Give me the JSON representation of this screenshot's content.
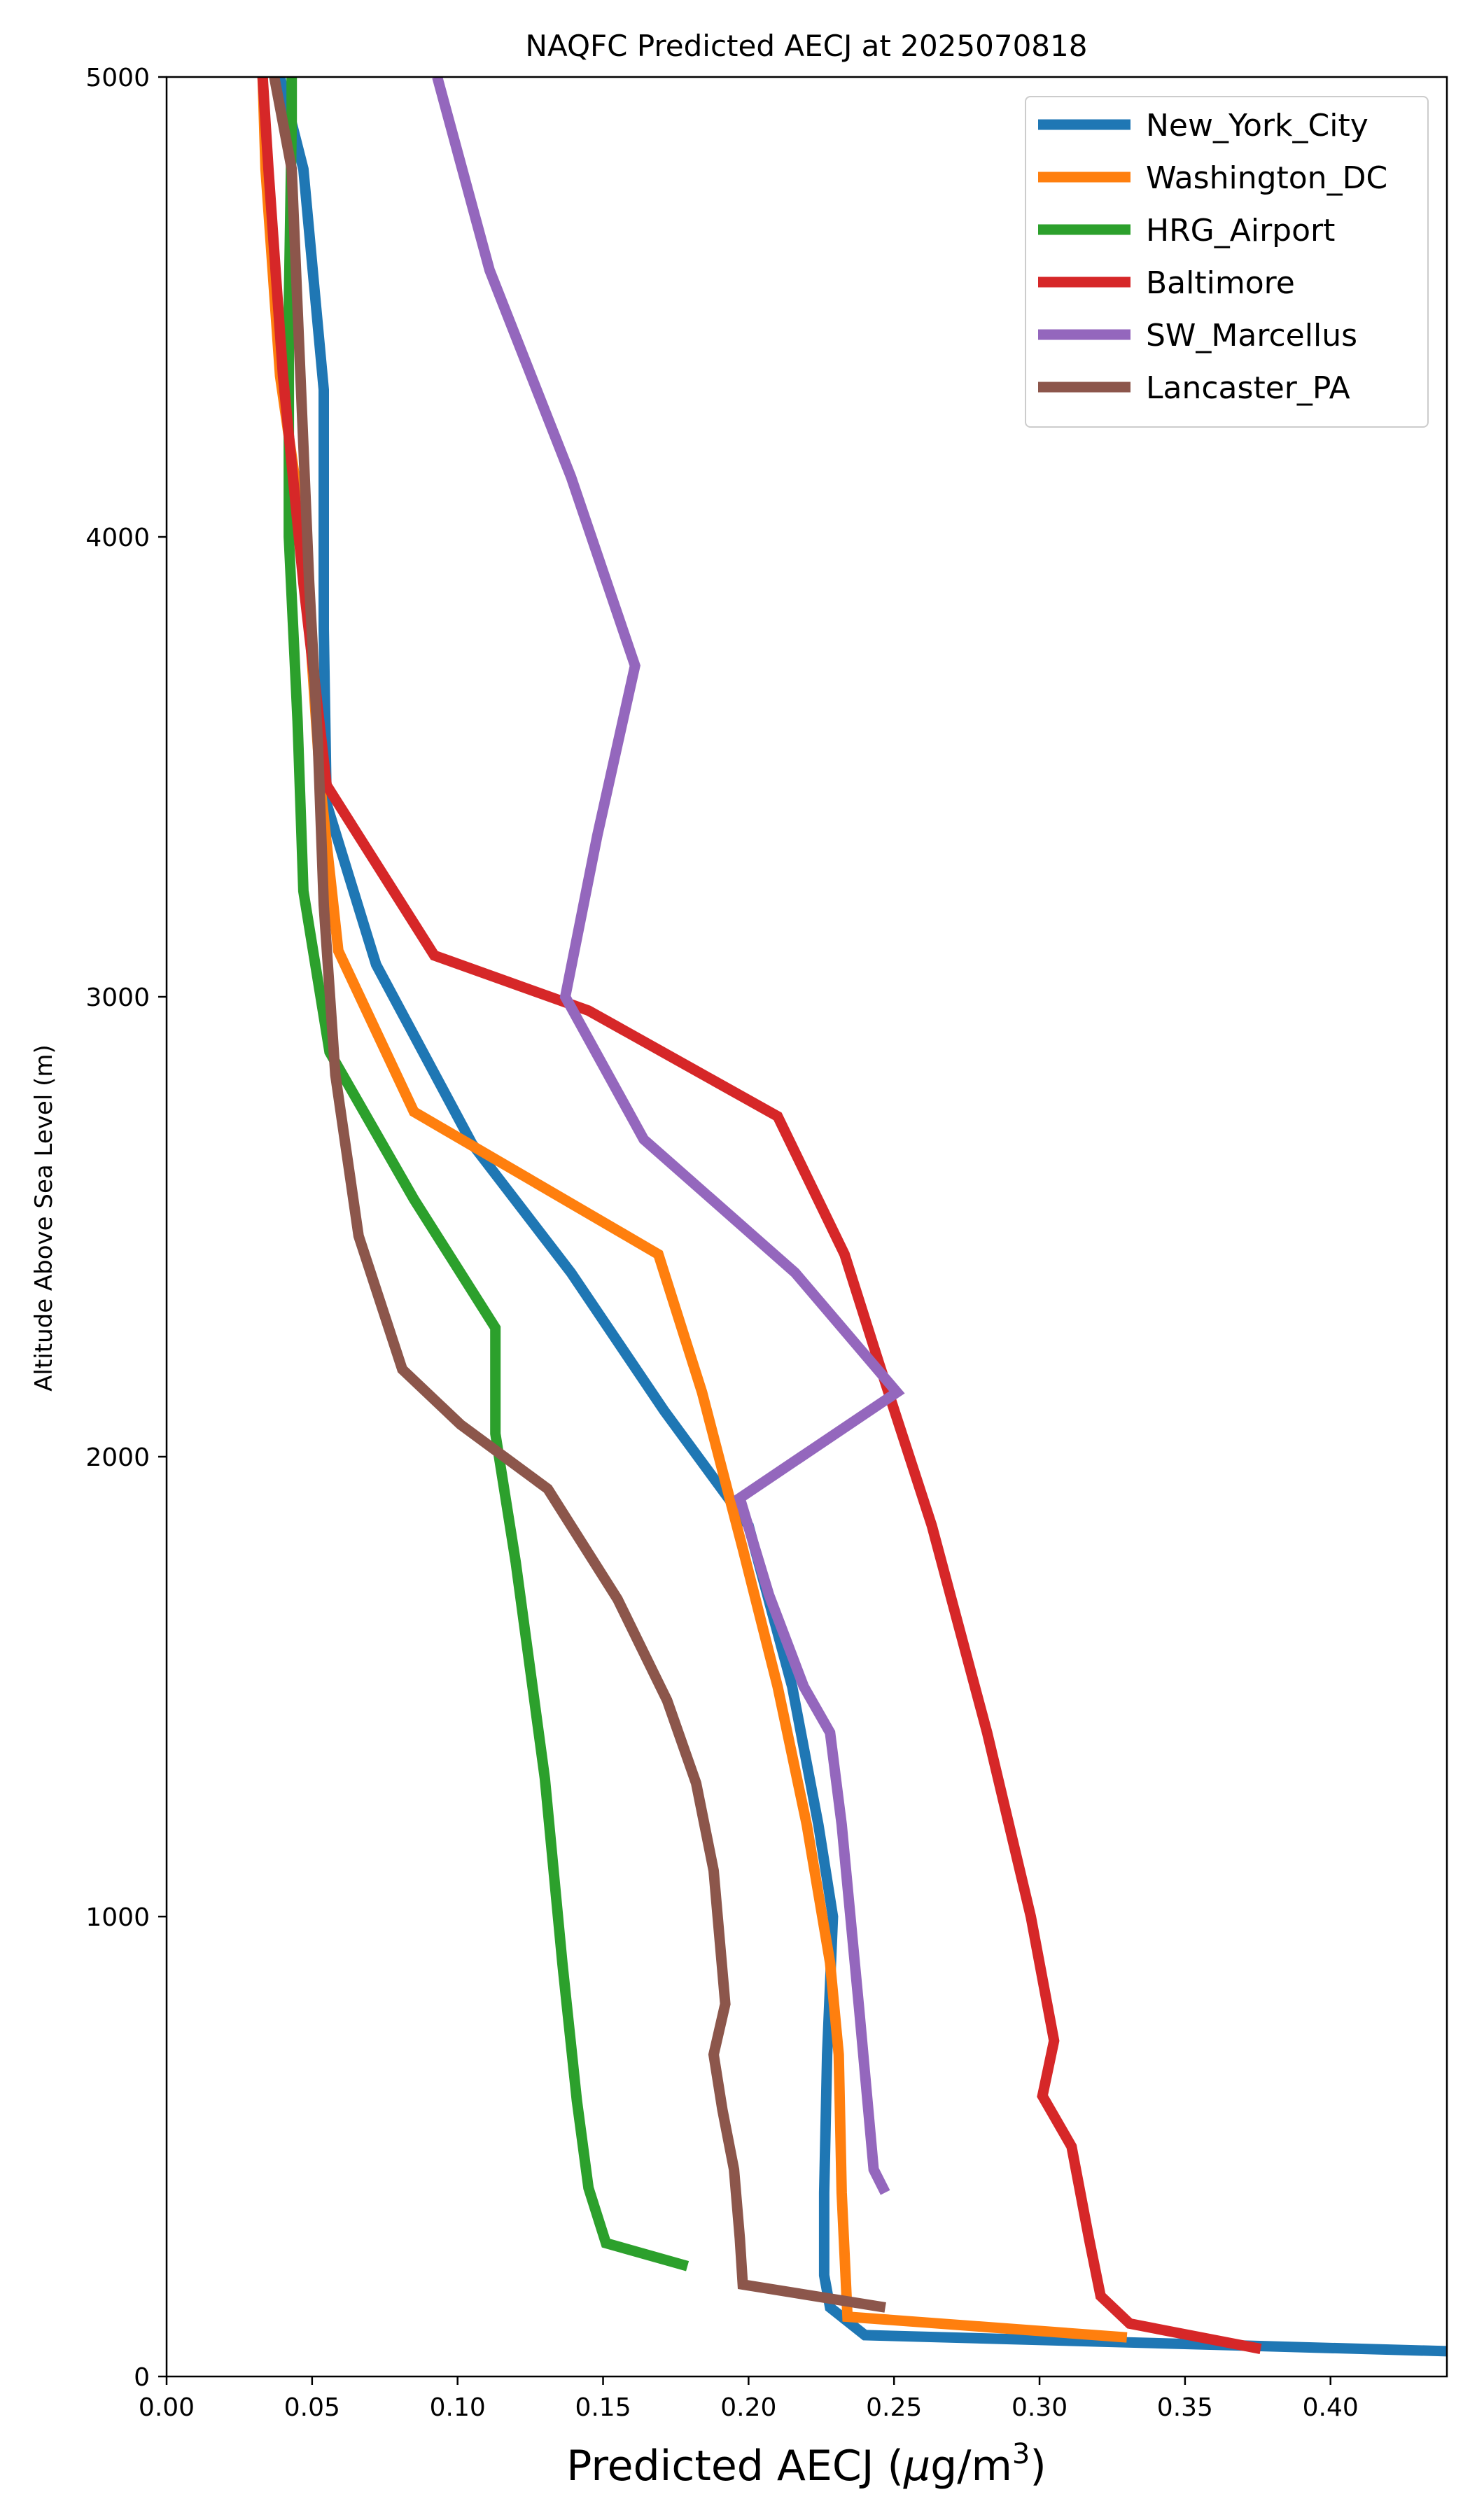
{
  "chart_data": {
    "type": "line",
    "title": "NAQFC Predicted AECJ at 2025070818",
    "xlabel": "Predicted AECJ (μg/m³)",
    "ylabel": "Altitude Above Sea Level (m)",
    "xlim": [
      0.0,
      0.44
    ],
    "ylim": [
      0,
      5000
    ],
    "xticks": [
      0.0,
      0.05,
      0.1,
      0.15,
      0.2,
      0.25,
      0.3,
      0.35,
      0.4
    ],
    "xtick_labels": [
      "0.00",
      "0.05",
      "0.10",
      "0.15",
      "0.20",
      "0.25",
      "0.30",
      "0.35",
      "0.40"
    ],
    "yticks": [
      0,
      1000,
      2000,
      3000,
      4000,
      5000
    ],
    "ytick_labels": [
      "0",
      "1000",
      "2000",
      "3000",
      "4000",
      "5000"
    ],
    "grid": false,
    "legend_position": "top-right",
    "series": [
      {
        "name": "New_York_City",
        "color": "#1f77b4",
        "points": [
          [
            0.44,
            55
          ],
          [
            0.24,
            90
          ],
          [
            0.228,
            150
          ],
          [
            0.226,
            220
          ],
          [
            0.226,
            400
          ],
          [
            0.227,
            700
          ],
          [
            0.229,
            1000
          ],
          [
            0.224,
            1200
          ],
          [
            0.215,
            1500
          ],
          [
            0.2,
            1850
          ],
          [
            0.171,
            2100
          ],
          [
            0.139,
            2400
          ],
          [
            0.105,
            2680
          ],
          [
            0.072,
            3070
          ],
          [
            0.055,
            3420
          ],
          [
            0.054,
            3800
          ],
          [
            0.054,
            4320
          ],
          [
            0.047,
            4800
          ],
          [
            0.039,
            5000
          ]
        ]
      },
      {
        "name": "Washington_DC",
        "color": "#ff7f0e",
        "points": [
          [
            0.33,
            85
          ],
          [
            0.234,
            130
          ],
          [
            0.232,
            400
          ],
          [
            0.231,
            700
          ],
          [
            0.228,
            900
          ],
          [
            0.22,
            1200
          ],
          [
            0.21,
            1500
          ],
          [
            0.198,
            1800
          ],
          [
            0.184,
            2140
          ],
          [
            0.169,
            2440
          ],
          [
            0.085,
            2750
          ],
          [
            0.059,
            3100
          ],
          [
            0.053,
            3450
          ],
          [
            0.047,
            4000
          ],
          [
            0.039,
            4350
          ],
          [
            0.034,
            4800
          ],
          [
            0.033,
            5000
          ]
        ]
      },
      {
        "name": "HRG_Airport",
        "color": "#2ca02c",
        "points": [
          [
            0.179,
            240
          ],
          [
            0.151,
            290
          ],
          [
            0.148,
            350
          ],
          [
            0.145,
            410
          ],
          [
            0.141,
            600
          ],
          [
            0.136,
            900
          ],
          [
            0.13,
            1300
          ],
          [
            0.12,
            1770
          ],
          [
            0.113,
            2050
          ],
          [
            0.113,
            2280
          ],
          [
            0.085,
            2560
          ],
          [
            0.056,
            2880
          ],
          [
            0.047,
            3230
          ],
          [
            0.045,
            3600
          ],
          [
            0.042,
            4000
          ],
          [
            0.042,
            4500
          ],
          [
            0.043,
            4900
          ],
          [
            0.043,
            5000
          ]
        ]
      },
      {
        "name": "Baltimore",
        "color": "#d62728",
        "points": [
          [
            0.376,
            60
          ],
          [
            0.331,
            115
          ],
          [
            0.321,
            175
          ],
          [
            0.317,
            300
          ],
          [
            0.311,
            500
          ],
          [
            0.301,
            610
          ],
          [
            0.305,
            730
          ],
          [
            0.297,
            1000
          ],
          [
            0.282,
            1400
          ],
          [
            0.263,
            1850
          ],
          [
            0.245,
            2200
          ],
          [
            0.233,
            2440
          ],
          [
            0.21,
            2740
          ],
          [
            0.145,
            2970
          ],
          [
            0.092,
            3090
          ],
          [
            0.055,
            3460
          ],
          [
            0.047,
            3900
          ],
          [
            0.04,
            4350
          ],
          [
            0.035,
            4800
          ],
          [
            0.033,
            5000
          ]
        ]
      },
      {
        "name": "SW_Marcellus",
        "color": "#9467bd",
        "points": [
          [
            0.247,
            400
          ],
          [
            0.243,
            450
          ],
          [
            0.238,
            800
          ],
          [
            0.232,
            1200
          ],
          [
            0.228,
            1400
          ],
          [
            0.219,
            1500
          ],
          [
            0.207,
            1700
          ],
          [
            0.197,
            1910
          ],
          [
            0.251,
            2140
          ],
          [
            0.216,
            2400
          ],
          [
            0.164,
            2690
          ],
          [
            0.137,
            3000
          ],
          [
            0.148,
            3350
          ],
          [
            0.161,
            3720
          ],
          [
            0.139,
            4130
          ],
          [
            0.111,
            4580
          ],
          [
            0.093,
            5000
          ]
        ]
      },
      {
        "name": "Lancaster_PA",
        "color": "#8c564b",
        "points": [
          [
            0.247,
            150
          ],
          [
            0.198,
            200
          ],
          [
            0.197,
            300
          ],
          [
            0.195,
            450
          ],
          [
            0.191,
            580
          ],
          [
            0.188,
            700
          ],
          [
            0.192,
            810
          ],
          [
            0.188,
            1100
          ],
          [
            0.182,
            1290
          ],
          [
            0.172,
            1470
          ],
          [
            0.155,
            1690
          ],
          [
            0.131,
            1930
          ],
          [
            0.101,
            2070
          ],
          [
            0.081,
            2190
          ],
          [
            0.066,
            2480
          ],
          [
            0.058,
            2830
          ],
          [
            0.054,
            3200
          ],
          [
            0.052,
            3550
          ],
          [
            0.049,
            3900
          ],
          [
            0.046,
            4350
          ],
          [
            0.043,
            4800
          ],
          [
            0.037,
            5000
          ]
        ]
      }
    ]
  }
}
